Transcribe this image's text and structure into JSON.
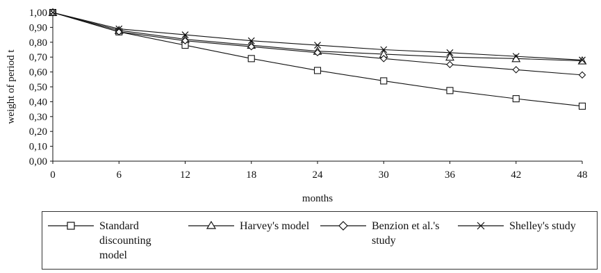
{
  "chart_data": {
    "type": "line",
    "title": "",
    "xlabel": "months",
    "ylabel": "weight of period t",
    "x": [
      0,
      6,
      12,
      18,
      24,
      30,
      36,
      42,
      48
    ],
    "xlim": [
      0,
      48
    ],
    "ylim": [
      0,
      1
    ],
    "y_ticks": [
      "0,00",
      "0,10",
      "0,20",
      "0,30",
      "0,40",
      "0,50",
      "0,60",
      "0,70",
      "0,80",
      "0,90",
      "1,00"
    ],
    "x_ticks": [
      "0",
      "6",
      "12",
      "18",
      "24",
      "30",
      "36",
      "42",
      "48"
    ],
    "grid": false,
    "legend": "bottom",
    "series": [
      {
        "name": "Standard discounting model",
        "marker": "square",
        "values": [
          1.0,
          0.87,
          0.78,
          0.69,
          0.61,
          0.54,
          0.475,
          0.42,
          0.37
        ]
      },
      {
        "name": "Harvey's model",
        "marker": "triangle",
        "values": [
          1.0,
          0.88,
          0.82,
          0.78,
          0.74,
          0.72,
          0.7,
          0.69,
          0.675
        ]
      },
      {
        "name": "Benzion et al.'s study",
        "marker": "diamond",
        "values": [
          1.0,
          0.87,
          0.81,
          0.77,
          0.73,
          0.69,
          0.65,
          0.615,
          0.58
        ]
      },
      {
        "name": "Shelley's study",
        "marker": "x",
        "values": [
          1.0,
          0.89,
          0.85,
          0.81,
          0.78,
          0.75,
          0.73,
          0.705,
          0.68
        ]
      }
    ]
  }
}
